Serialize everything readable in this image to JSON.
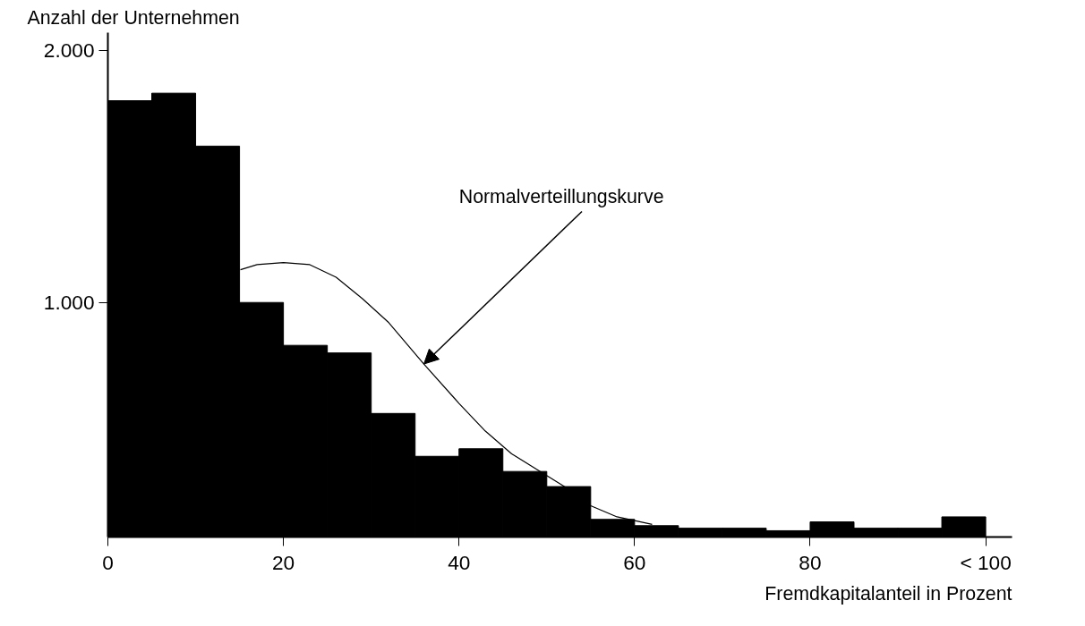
{
  "chart_data": {
    "type": "histogram",
    "xlabel": "Fremdkapitalanteil in Prozent",
    "ylabel": "Anzahl der Unternehmen",
    "bins": [
      0,
      5,
      10,
      15,
      20,
      25,
      30,
      35,
      40,
      45,
      50,
      55,
      60,
      65,
      70,
      75,
      80,
      85,
      90,
      95,
      100
    ],
    "values": [
      1800,
      1830,
      1620,
      1000,
      830,
      800,
      560,
      390,
      420,
      330,
      270,
      140,
      115,
      105,
      105,
      95,
      130,
      105,
      105,
      150
    ],
    "color": "#000000",
    "series": [
      {
        "type": "line",
        "color": "#000000",
        "x": [
          15.1,
          17,
          20,
          23,
          26,
          29,
          32,
          36,
          40,
          43,
          46,
          49,
          52,
          55,
          58,
          62
        ],
        "values": [
          1130,
          1150,
          1158,
          1150,
          1100,
          1015,
          920,
          756,
          600,
          490,
          400,
          335,
          270,
          194,
          150,
          120
        ]
      }
    ],
    "annotations": [
      {
        "text": "Normalverteillungskurve",
        "x": 36,
        "y": 756
      }
    ],
    "xlim": [
      0,
      103
    ],
    "ylim": [
      70,
      2070
    ],
    "xticks": [
      0,
      20,
      40,
      60,
      80,
      {
        "value": 100,
        "label": "< 100"
      }
    ],
    "yticks": [
      {
        "value": 1000,
        "label": "1.000"
      },
      {
        "value": 2000,
        "label": "2.000"
      }
    ],
    "grid": false
  }
}
